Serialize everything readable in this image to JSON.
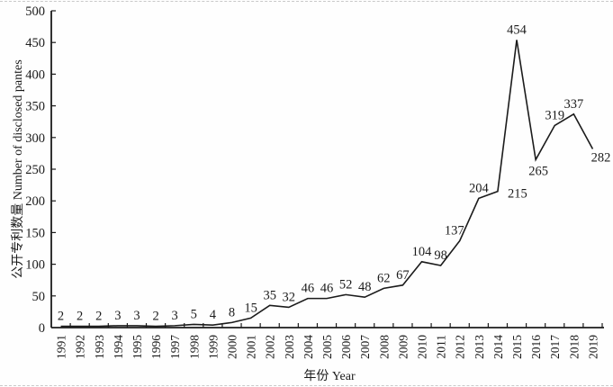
{
  "chart_data": {
    "type": "line",
    "title": "",
    "categories": [
      "1991",
      "1992",
      "1993",
      "1994",
      "1995",
      "1996",
      "1997",
      "1998",
      "1999",
      "2000",
      "2001",
      "2002",
      "2003",
      "2004",
      "2005",
      "2006",
      "2007",
      "2008",
      "2009",
      "2010",
      "2011",
      "2012",
      "2013",
      "2014",
      "2015",
      "2016",
      "2017",
      "2018",
      "2019"
    ],
    "values": [
      2,
      2,
      2,
      3,
      3,
      2,
      3,
      5,
      4,
      8,
      15,
      35,
      32,
      46,
      46,
      52,
      48,
      62,
      67,
      104,
      98,
      137,
      204,
      215,
      454,
      265,
      319,
      337,
      282
    ],
    "xlabel": "年份 Year",
    "ylabel": "公开专利数量 Number of disclosed pantes",
    "ylim": [
      0,
      500
    ],
    "ytick_step": 50,
    "grid": false,
    "legend": "none",
    "line_color": "#1b1b1b",
    "text_color": "#1b1b1b",
    "label_offsets": {
      "2012": [
        -6,
        -7
      ],
      "2014": [
        22,
        7
      ],
      "2016": [
        3,
        17
      ],
      "2019": [
        9,
        14
      ]
    }
  }
}
